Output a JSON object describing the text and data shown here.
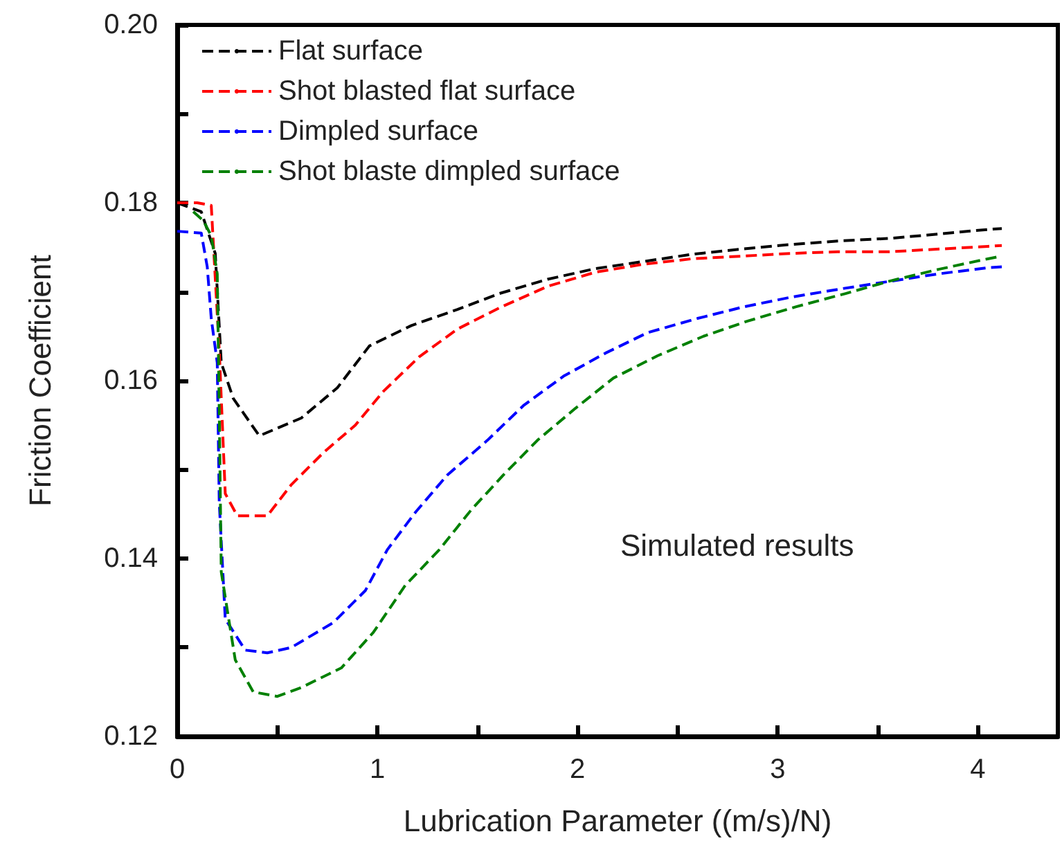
{
  "chart_data": {
    "type": "line",
    "xlabel": "Lubrication Parameter ((m/s)/N)",
    "ylabel": "Friction Coefficient",
    "xlim": [
      0,
      4.4
    ],
    "xticks": [
      0,
      1,
      2,
      3,
      4
    ],
    "ylim": [
      0.12,
      0.2
    ],
    "yticks": [
      {
        "value": 0.12,
        "label": "0.12"
      },
      {
        "value": 0.14,
        "label": "0.14"
      },
      {
        "value": 0.16,
        "label": "0.16"
      },
      {
        "value": 0.18,
        "label": "0.18"
      },
      {
        "value": 0.2,
        "label": "0.20"
      }
    ],
    "grid": false,
    "legend": "top left",
    "line_style": "dashed",
    "marker": "none",
    "annotations": [
      "Simulated results"
    ],
    "series": [
      {
        "name": "Flat surface",
        "color": "#000000",
        "x": [
          0,
          0.12,
          0.19,
          0.22,
          0.28,
          0.41,
          0.62,
          0.8,
          0.96,
          1.17,
          1.4,
          1.61,
          1.85,
          2.09,
          2.33,
          2.57,
          2.82,
          3.06,
          3.3,
          3.56,
          3.81,
          4.05,
          4.12
        ],
        "values": [
          0.18,
          0.179,
          0.1743,
          0.162,
          0.158,
          0.1538,
          0.1558,
          0.1592,
          0.1639,
          0.1662,
          0.168,
          0.1698,
          0.1714,
          0.1726,
          0.1734,
          0.1742,
          0.1748,
          0.1753,
          0.1757,
          0.176,
          0.1765,
          0.177,
          0.1771
        ]
      },
      {
        "name": "Shot blasted flat surface",
        "color": "#ff0000",
        "x": [
          0,
          0.1,
          0.17,
          0.21,
          0.24,
          0.3,
          0.45,
          0.57,
          0.73,
          0.89,
          1.03,
          1.21,
          1.4,
          1.62,
          1.85,
          2.09,
          2.33,
          2.57,
          2.82,
          3.06,
          3.3,
          3.56,
          3.81,
          4.05,
          4.12
        ],
        "values": [
          0.18,
          0.18,
          0.1797,
          0.1634,
          0.1473,
          0.1448,
          0.1448,
          0.1483,
          0.1519,
          0.155,
          0.1588,
          0.1627,
          0.1658,
          0.1683,
          0.1706,
          0.1722,
          0.1731,
          0.1737,
          0.174,
          0.1743,
          0.1745,
          0.1745,
          0.1748,
          0.1751,
          0.1752
        ]
      },
      {
        "name": "Dimpled surface",
        "color": "#0000ff",
        "x": [
          0,
          0.12,
          0.15,
          0.17,
          0.2,
          0.21,
          0.24,
          0.34,
          0.45,
          0.57,
          0.78,
          0.94,
          1.05,
          1.19,
          1.35,
          1.55,
          1.73,
          1.93,
          2.14,
          2.35,
          2.6,
          2.83,
          3.07,
          3.31,
          3.54,
          3.8,
          4.05,
          4.12
        ],
        "values": [
          0.1768,
          0.1766,
          0.1728,
          0.167,
          0.162,
          0.1463,
          0.1332,
          0.1297,
          0.1294,
          0.13,
          0.1328,
          0.1364,
          0.141,
          0.1452,
          0.1494,
          0.1533,
          0.1572,
          0.1605,
          0.1631,
          0.1654,
          0.167,
          0.1683,
          0.1694,
          0.1703,
          0.1711,
          0.172,
          0.1727,
          0.1728
        ]
      },
      {
        "name": "Shot blaste dimpled surface",
        "color": "#008000",
        "x": [
          0.08,
          0.13,
          0.17,
          0.2,
          0.21,
          0.22,
          0.26,
          0.29,
          0.38,
          0.5,
          0.62,
          0.82,
          0.98,
          1.14,
          1.31,
          1.47,
          1.63,
          1.8,
          1.99,
          2.18,
          2.4,
          2.63,
          2.85,
          3.09,
          3.34,
          3.56,
          3.8,
          4.05,
          4.12
        ],
        "values": [
          0.179,
          0.178,
          0.1763,
          0.172,
          0.1566,
          0.1385,
          0.1328,
          0.1286,
          0.125,
          0.1245,
          0.1255,
          0.1277,
          0.1317,
          0.137,
          0.141,
          0.1455,
          0.1494,
          0.1533,
          0.1569,
          0.1603,
          0.1628,
          0.165,
          0.1667,
          0.1683,
          0.1698,
          0.1712,
          0.1725,
          0.1737,
          0.174
        ]
      }
    ]
  }
}
